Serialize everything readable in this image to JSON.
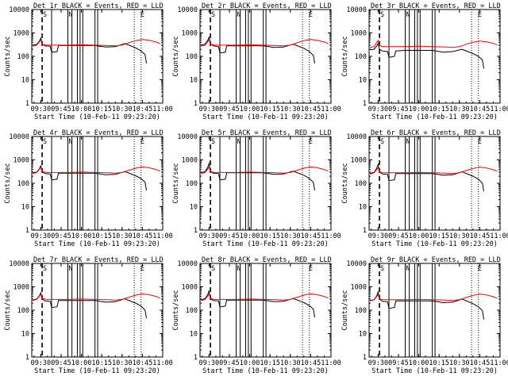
{
  "colors": {
    "events": "#000000",
    "lld": "#ff0000",
    "axis": "#000000"
  },
  "common": {
    "xlabel": "Start Time (10-Feb-11 09:23:20)",
    "ylabel": "Counts/sec",
    "xticks": [
      "09:30",
      "09:45",
      "10:00",
      "10:15",
      "10:30",
      "10:45",
      "11:00"
    ],
    "yticks": [
      "1",
      "10",
      "100",
      "1000",
      "10000"
    ],
    "markers": [
      "S",
      "N",
      "E"
    ]
  },
  "chart_data": [
    {
      "type": "line",
      "title": "Det_1r BLACK = Events, RED = LLD",
      "xlabel": "Start Time (10-Feb-11 09:23:20)",
      "ylabel": "Counts/sec",
      "yscale": "log",
      "ylim": [
        1,
        10000
      ],
      "xlim": [
        "09:23:20",
        "11:00:00"
      ],
      "series": [
        {
          "name": "Events",
          "color": "#000000",
          "x": [
            "09:24",
            "09:27",
            "09:29",
            "09:30",
            "09:31",
            "09:33",
            "09:37",
            "09:38",
            "09:42",
            "09:43",
            "09:50",
            "10:10",
            "10:18",
            "10:25",
            "10:32",
            "10:40",
            "10:44",
            "10:47",
            "10:48"
          ],
          "values": [
            300,
            320,
            450,
            600,
            350,
            280,
            270,
            150,
            160,
            290,
            290,
            290,
            250,
            260,
            350,
            230,
            170,
            120,
            50
          ]
        },
        {
          "name": "LLD",
          "color": "#ff0000",
          "x": [
            "09:24",
            "09:27",
            "09:29",
            "09:30",
            "09:31",
            "09:34",
            "09:40",
            "09:50",
            "10:00",
            "10:10",
            "10:20",
            "10:25",
            "10:30",
            "10:35",
            "10:40",
            "10:45",
            "10:50",
            "10:55",
            "10:58"
          ],
          "values": [
            270,
            300,
            420,
            500,
            330,
            300,
            300,
            300,
            310,
            300,
            290,
            280,
            300,
            380,
            470,
            530,
            480,
            410,
            350
          ]
        }
      ]
    },
    {
      "type": "line",
      "title": "Det_2r BLACK = Events, RED = LLD",
      "xlabel": "Start Time (10-Feb-11 09:23:20)",
      "ylabel": "Counts/sec",
      "yscale": "log",
      "ylim": [
        1,
        10000
      ],
      "xlim": [
        "09:23:20",
        "11:00:00"
      ],
      "series": [
        {
          "name": "Events",
          "color": "#000000",
          "x": [
            "09:24",
            "09:27",
            "09:29",
            "09:30",
            "09:31",
            "09:33",
            "09:37",
            "09:38",
            "09:42",
            "09:43",
            "09:50",
            "10:10",
            "10:18",
            "10:25",
            "10:32",
            "10:40",
            "10:44",
            "10:47",
            "10:48"
          ],
          "values": [
            300,
            330,
            480,
            650,
            350,
            280,
            260,
            140,
            150,
            280,
            280,
            280,
            240,
            250,
            330,
            220,
            160,
            110,
            50
          ]
        },
        {
          "name": "LLD",
          "color": "#ff0000",
          "x": [
            "09:24",
            "09:27",
            "09:29",
            "09:30",
            "09:31",
            "09:34",
            "09:40",
            "09:50",
            "10:00",
            "10:10",
            "10:20",
            "10:25",
            "10:30",
            "10:35",
            "10:40",
            "10:45",
            "10:50",
            "10:55",
            "10:58"
          ],
          "values": [
            270,
            300,
            420,
            520,
            330,
            300,
            300,
            300,
            310,
            300,
            290,
            280,
            300,
            380,
            470,
            530,
            480,
            410,
            350
          ]
        }
      ]
    },
    {
      "type": "line",
      "title": "Det_3r BLACK = Events, RED = LLD",
      "xlabel": "Start Time (10-Feb-11 09:23:20)",
      "ylabel": "Counts/sec",
      "yscale": "log",
      "ylim": [
        1,
        10000
      ],
      "xlim": [
        "09:23:20",
        "11:00:00"
      ],
      "series": [
        {
          "name": "Events",
          "color": "#000000",
          "x": [
            "09:24",
            "09:27",
            "09:29",
            "09:30",
            "09:31",
            "09:33",
            "09:37",
            "09:38",
            "09:42",
            "09:43",
            "09:50",
            "10:10",
            "10:18",
            "10:25",
            "10:32",
            "10:40",
            "10:44",
            "10:47",
            "10:48"
          ],
          "values": [
            190,
            200,
            280,
            350,
            200,
            170,
            160,
            90,
            100,
            170,
            180,
            180,
            150,
            160,
            200,
            130,
            100,
            70,
            30
          ]
        },
        {
          "name": "LLD",
          "color": "#ff0000",
          "x": [
            "09:24",
            "09:27",
            "09:29",
            "09:30",
            "09:31",
            "09:34",
            "09:40",
            "09:50",
            "10:00",
            "10:10",
            "10:20",
            "10:25",
            "10:30",
            "10:35",
            "10:40",
            "10:45",
            "10:50",
            "10:55",
            "10:58"
          ],
          "values": [
            240,
            260,
            400,
            480,
            280,
            260,
            260,
            260,
            270,
            260,
            250,
            240,
            260,
            330,
            400,
            450,
            420,
            360,
            300
          ]
        }
      ]
    },
    {
      "type": "line",
      "title": "Det_4r BLACK = Events, RED = LLD",
      "xlabel": "Start Time (10-Feb-11 09:23:20)",
      "ylabel": "Counts/sec",
      "yscale": "log",
      "ylim": [
        1,
        10000
      ],
      "xlim": [
        "09:23:20",
        "11:00:00"
      ],
      "series": [
        {
          "name": "Events",
          "color": "#000000",
          "x": [
            "09:24",
            "09:27",
            "09:29",
            "09:30",
            "09:31",
            "09:33",
            "09:37",
            "09:38",
            "09:42",
            "09:43",
            "09:50",
            "10:10",
            "10:18",
            "10:25",
            "10:32",
            "10:40",
            "10:44",
            "10:47",
            "10:48"
          ],
          "values": [
            280,
            300,
            420,
            560,
            320,
            260,
            250,
            140,
            150,
            270,
            270,
            270,
            230,
            240,
            320,
            210,
            160,
            110,
            50
          ]
        },
        {
          "name": "LLD",
          "color": "#ff0000",
          "x": [
            "09:24",
            "09:27",
            "09:29",
            "09:30",
            "09:31",
            "09:34",
            "09:40",
            "09:50",
            "10:00",
            "10:10",
            "10:20",
            "10:25",
            "10:30",
            "10:35",
            "10:40",
            "10:45",
            "10:50",
            "10:55",
            "10:58"
          ],
          "values": [
            260,
            290,
            400,
            480,
            320,
            290,
            290,
            290,
            300,
            290,
            280,
            270,
            290,
            360,
            440,
            500,
            460,
            390,
            330
          ]
        }
      ]
    },
    {
      "type": "line",
      "title": "Det_5r BLACK = Events, RED = LLD",
      "xlabel": "Start Time (10-Feb-11 09:23:20)",
      "ylabel": "Counts/sec",
      "yscale": "log",
      "ylim": [
        1,
        10000
      ],
      "xlim": [
        "09:23:20",
        "11:00:00"
      ],
      "series": [
        {
          "name": "Events",
          "color": "#000000",
          "x": [
            "09:24",
            "09:27",
            "09:29",
            "09:30",
            "09:31",
            "09:33",
            "09:37",
            "09:38",
            "09:42",
            "09:43",
            "09:50",
            "10:10",
            "10:18",
            "10:25",
            "10:32",
            "10:40",
            "10:44",
            "10:47",
            "10:48"
          ],
          "values": [
            290,
            310,
            480,
            700,
            330,
            270,
            260,
            140,
            150,
            280,
            280,
            280,
            240,
            250,
            330,
            220,
            160,
            110,
            50
          ]
        },
        {
          "name": "LLD",
          "color": "#ff0000",
          "x": [
            "09:24",
            "09:27",
            "09:29",
            "09:30",
            "09:31",
            "09:34",
            "09:40",
            "09:50",
            "10:00",
            "10:10",
            "10:20",
            "10:25",
            "10:30",
            "10:35",
            "10:40",
            "10:45",
            "10:50",
            "10:55",
            "10:58"
          ],
          "values": [
            260,
            290,
            400,
            500,
            320,
            290,
            290,
            290,
            300,
            290,
            280,
            270,
            290,
            360,
            440,
            500,
            460,
            390,
            330
          ]
        }
      ]
    },
    {
      "type": "line",
      "title": "Det_6r BLACK = Events, RED = LLD",
      "xlabel": "Start Time (10-Feb-11 09:23:20)",
      "ylabel": "Counts/sec",
      "yscale": "log",
      "ylim": [
        1,
        10000
      ],
      "xlim": [
        "09:23:20",
        "11:00:00"
      ],
      "series": [
        {
          "name": "Events",
          "color": "#000000",
          "x": [
            "09:24",
            "09:27",
            "09:29",
            "09:30",
            "09:31",
            "09:33",
            "09:37",
            "09:38",
            "09:42",
            "09:43",
            "09:50",
            "10:10",
            "10:18",
            "10:25",
            "10:32",
            "10:40",
            "10:44",
            "10:47",
            "10:48"
          ],
          "values": [
            270,
            290,
            450,
            650,
            310,
            250,
            240,
            130,
            140,
            260,
            260,
            260,
            220,
            230,
            310,
            200,
            150,
            100,
            45
          ]
        },
        {
          "name": "LLD",
          "color": "#ff0000",
          "x": [
            "09:24",
            "09:27",
            "09:29",
            "09:30",
            "09:31",
            "09:34",
            "09:40",
            "09:50",
            "10:00",
            "10:10",
            "10:20",
            "10:25",
            "10:30",
            "10:35",
            "10:40",
            "10:45",
            "10:50",
            "10:55",
            "10:58"
          ],
          "values": [
            250,
            280,
            390,
            470,
            310,
            280,
            280,
            280,
            290,
            280,
            270,
            260,
            280,
            350,
            430,
            490,
            450,
            380,
            320
          ]
        }
      ]
    },
    {
      "type": "line",
      "title": "Det_7r BLACK = Events, RED = LLD",
      "xlabel": "Start Time (10-Feb-11 09:23:20)",
      "ylabel": "Counts/sec",
      "yscale": "log",
      "ylim": [
        1,
        10000
      ],
      "xlim": [
        "09:23:20",
        "11:00:00"
      ],
      "series": [
        {
          "name": "Events",
          "color": "#000000",
          "x": [
            "09:24",
            "09:27",
            "09:29",
            "09:30",
            "09:31",
            "09:33",
            "09:37",
            "09:38",
            "09:42",
            "09:43",
            "09:50",
            "10:10",
            "10:18",
            "10:25",
            "10:32",
            "10:40",
            "10:44",
            "10:47",
            "10:48"
          ],
          "values": [
            270,
            300,
            420,
            560,
            310,
            250,
            240,
            130,
            140,
            260,
            260,
            260,
            220,
            230,
            310,
            200,
            150,
            100,
            45
          ]
        },
        {
          "name": "LLD",
          "color": "#ff0000",
          "x": [
            "09:24",
            "09:27",
            "09:29",
            "09:30",
            "09:31",
            "09:34",
            "09:40",
            "09:50",
            "10:00",
            "10:10",
            "10:20",
            "10:25",
            "10:30",
            "10:35",
            "10:40",
            "10:45",
            "10:50",
            "10:55",
            "10:58"
          ],
          "values": [
            260,
            290,
            400,
            480,
            320,
            290,
            290,
            290,
            300,
            290,
            280,
            270,
            290,
            360,
            440,
            500,
            460,
            390,
            330
          ]
        }
      ]
    },
    {
      "type": "line",
      "title": "Det_8r BLACK = Events, RED = LLD",
      "xlabel": "Start Time (10-Feb-11 09:23:20)",
      "ylabel": "Counts/sec",
      "yscale": "log",
      "ylim": [
        1,
        10000
      ],
      "xlim": [
        "09:23:20",
        "11:00:00"
      ],
      "series": [
        {
          "name": "Events",
          "color": "#000000",
          "x": [
            "09:24",
            "09:27",
            "09:29",
            "09:30",
            "09:31",
            "09:33",
            "09:37",
            "09:38",
            "09:42",
            "09:43",
            "09:50",
            "10:10",
            "10:18",
            "10:25",
            "10:32",
            "10:40",
            "10:44",
            "10:47",
            "10:48"
          ],
          "values": [
            280,
            310,
            460,
            680,
            320,
            260,
            250,
            140,
            150,
            270,
            270,
            270,
            230,
            240,
            320,
            210,
            160,
            110,
            50
          ]
        },
        {
          "name": "LLD",
          "color": "#ff0000",
          "x": [
            "09:24",
            "09:27",
            "09:29",
            "09:30",
            "09:31",
            "09:34",
            "09:40",
            "09:50",
            "10:00",
            "10:10",
            "10:20",
            "10:25",
            "10:30",
            "10:35",
            "10:40",
            "10:45",
            "10:50",
            "10:55",
            "10:58"
          ],
          "values": [
            260,
            290,
            400,
            490,
            320,
            290,
            290,
            290,
            300,
            290,
            280,
            270,
            290,
            360,
            440,
            500,
            460,
            390,
            330
          ]
        }
      ]
    },
    {
      "type": "line",
      "title": "Det_9r BLACK = Events, RED = LLD",
      "xlabel": "Start Time (10-Feb-11 09:23:20)",
      "ylabel": "Counts/sec",
      "yscale": "log",
      "ylim": [
        1,
        10000
      ],
      "xlim": [
        "09:23:20",
        "11:00:00"
      ],
      "series": [
        {
          "name": "Events",
          "color": "#000000",
          "x": [
            "09:24",
            "09:27",
            "09:29",
            "09:30",
            "09:31",
            "09:33",
            "09:37",
            "09:38",
            "09:42",
            "09:43",
            "09:50",
            "10:10",
            "10:18",
            "10:25",
            "10:32",
            "10:40",
            "10:44",
            "10:47",
            "10:48"
          ],
          "values": [
            260,
            280,
            420,
            600,
            300,
            240,
            230,
            120,
            130,
            250,
            250,
            250,
            210,
            220,
            300,
            190,
            140,
            95,
            40
          ]
        },
        {
          "name": "LLD",
          "color": "#ff0000",
          "x": [
            "09:24",
            "09:27",
            "09:29",
            "09:30",
            "09:31",
            "09:34",
            "09:40",
            "09:50",
            "10:00",
            "10:10",
            "10:20",
            "10:25",
            "10:30",
            "10:35",
            "10:40",
            "10:45",
            "10:50",
            "10:55",
            "10:58"
          ],
          "values": [
            250,
            280,
            390,
            460,
            310,
            280,
            280,
            280,
            290,
            280,
            270,
            260,
            280,
            350,
            430,
            490,
            450,
            380,
            320
          ]
        }
      ]
    }
  ]
}
